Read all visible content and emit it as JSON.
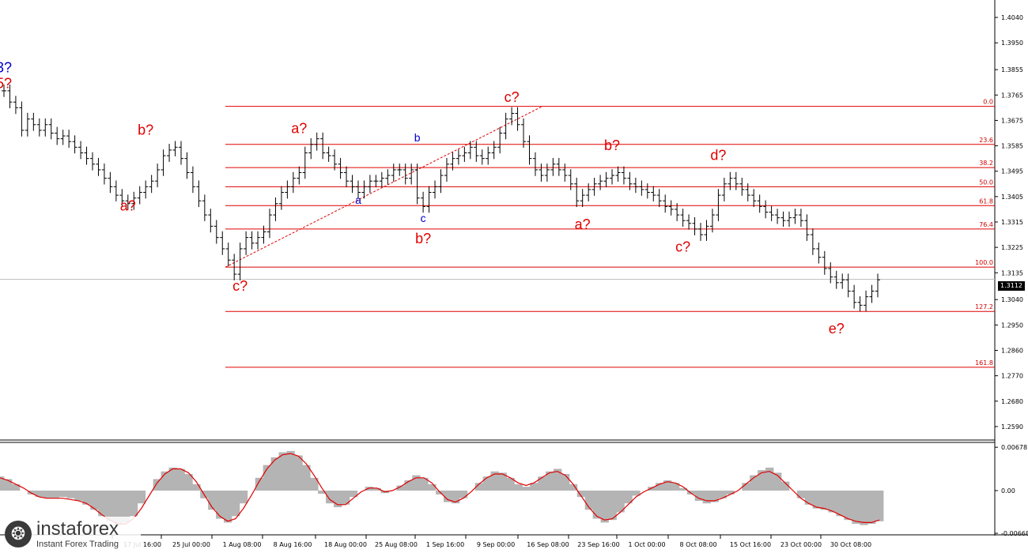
{
  "chart_data": [
    {
      "type": "line",
      "ylim": [
        1.2545,
        1.4085
      ],
      "y_ticks": [
        "1.4040",
        "1.3950",
        "1.3855",
        "1.3765",
        "1.3675",
        "1.3585",
        "1.3495",
        "1.3405",
        "1.3315",
        "1.3225",
        "1.3135",
        "1.3040",
        "1.2950",
        "1.2860",
        "1.2770",
        "1.2680",
        "1.2590"
      ],
      "x_ticks": [
        "17 Jul 16:00",
        "25 Jul 00:00",
        "1 Aug 08:00",
        "8 Aug 16:00",
        "18 Aug 00:00",
        "25 Aug 08:00",
        "1 Sep 16:00",
        "9 Sep 00:00",
        "16 Sep 08:00",
        "23 Sep 16:00",
        "1 Oct 00:00",
        "8 Oct 08:00",
        "15 Oct 16:00",
        "23 Oct 00:00",
        "30 Oct 08:00"
      ],
      "current_price": "1.3112",
      "series": [
        {
          "values": [
            1.378,
            1.374,
            1.372,
            1.364,
            1.368,
            1.366,
            1.364,
            1.366,
            1.363,
            1.361,
            1.362,
            1.36,
            1.358,
            1.356,
            1.354,
            1.352,
            1.35,
            1.347,
            1.344,
            1.341,
            1.339,
            1.338,
            1.34,
            1.342,
            1.344,
            1.346,
            1.35,
            1.355,
            1.357,
            1.358,
            1.354,
            1.349,
            1.344,
            1.339,
            1.334,
            1.33,
            1.326,
            1.322,
            1.318,
            1.313,
            1.322,
            1.326,
            1.324,
            1.326,
            1.328,
            1.334,
            1.338,
            1.342,
            1.344,
            1.347,
            1.349,
            1.356,
            1.359,
            1.361,
            1.356,
            1.355,
            1.352,
            1.349,
            1.346,
            1.344,
            1.342,
            1.344,
            1.346,
            1.346,
            1.347,
            1.348,
            1.35,
            1.35,
            1.347,
            1.35,
            1.34,
            1.337,
            1.342,
            1.344,
            1.348,
            1.352,
            1.354,
            1.355,
            1.356,
            1.358,
            1.355,
            1.354,
            1.356,
            1.358,
            1.363,
            1.368,
            1.37,
            1.366,
            1.36,
            1.354,
            1.35,
            1.348,
            1.35,
            1.352,
            1.35,
            1.348,
            1.345,
            1.339,
            1.341,
            1.343,
            1.345,
            1.346,
            1.347,
            1.348,
            1.349,
            1.347,
            1.345,
            1.344,
            1.343,
            1.342,
            1.341,
            1.339,
            1.337,
            1.336,
            1.334,
            1.332,
            1.331,
            1.329,
            1.327,
            1.33,
            1.334,
            1.341,
            1.345,
            1.347,
            1.345,
            1.343,
            1.341,
            1.339,
            1.337,
            1.335,
            1.334,
            1.333,
            1.332,
            1.333,
            1.334,
            1.332,
            1.327,
            1.322,
            1.319,
            1.315,
            1.312,
            1.31,
            1.311,
            1.307,
            1.303,
            1.302,
            1.305,
            1.307,
            1.311
          ]
        }
      ],
      "fibo_levels": [
        {
          "label": "0.0",
          "value": 1.3725
        },
        {
          "label": "23.6",
          "value": 1.359
        },
        {
          "label": "38.2",
          "value": 1.3508
        },
        {
          "label": "50.0",
          "value": 1.344
        },
        {
          "label": "61.8",
          "value": 1.3373
        },
        {
          "label": "76.4",
          "value": 1.329
        },
        {
          "label": "100.0",
          "value": 1.3155
        },
        {
          "label": "127.2",
          "value": 1.2998
        },
        {
          "label": "161.8",
          "value": 1.28
        }
      ],
      "wave_labels": [
        {
          "text": "3?",
          "color": "blue",
          "x_index": 0,
          "y": 1.3845
        },
        {
          "text": "5?",
          "color": "red",
          "x_index": 0,
          "y": 1.379
        },
        {
          "text": "b?",
          "color": "red",
          "x_index": 24,
          "y": 1.3625
        },
        {
          "text": "a?",
          "color": "red",
          "x_index": 21,
          "y": 1.3355
        },
        {
          "text": "c?",
          "color": "red",
          "x_index": 40,
          "y": 1.3072
        },
        {
          "text": "a?",
          "color": "red",
          "x_index": 50,
          "y": 1.363
        },
        {
          "text": "a",
          "color": "blue",
          "x_index": 60,
          "y": 1.338
        },
        {
          "text": "b",
          "color": "blue",
          "x_index": 70,
          "y": 1.36
        },
        {
          "text": "c",
          "color": "blue",
          "x_index": 71,
          "y": 1.3315
        },
        {
          "text": "b?",
          "color": "red",
          "x_index": 71,
          "y": 1.324
        },
        {
          "text": "c?",
          "color": "red",
          "x_index": 86,
          "y": 1.374
        },
        {
          "text": "b?",
          "color": "red",
          "x_index": 103,
          "y": 1.357
        },
        {
          "text": "a?",
          "color": "red",
          "x_index": 98,
          "y": 1.329
        },
        {
          "text": "d?",
          "color": "red",
          "x_index": 121,
          "y": 1.3535
        },
        {
          "text": "c?",
          "color": "red",
          "x_index": 115,
          "y": 1.321
        },
        {
          "text": "e?",
          "color": "red",
          "x_index": 141,
          "y": 1.292
        }
      ]
    },
    {
      "type": "bar",
      "ylim": [
        -0.0068,
        0.0068
      ],
      "y_ticks": [
        "0.00678",
        "0.00",
        "-0.00668"
      ],
      "series": [
        {
          "name": "histogram",
          "values": [
            0.0022,
            0.0018,
            0.001,
            0.0,
            -0.0006,
            -0.001,
            -0.0012,
            -0.0012,
            -0.001,
            -0.0012,
            -0.0016,
            -0.0022,
            -0.003,
            -0.004,
            -0.0048,
            -0.0054,
            -0.005,
            -0.004,
            -0.002,
            0.0,
            0.0018,
            0.003,
            0.0036,
            0.0034,
            0.0026,
            0.001,
            -0.0012,
            -0.003,
            -0.0044,
            -0.005,
            -0.004,
            -0.002,
            0.0,
            0.002,
            0.004,
            0.0052,
            0.006,
            0.0062,
            0.0055,
            0.004,
            0.002,
            -0.0005,
            -0.002,
            -0.0026,
            -0.0022,
            -0.001,
            0.0,
            0.0006,
            0.0004,
            -0.0004,
            0.0,
            0.0008,
            0.0016,
            0.0024,
            0.002,
            0.001,
            -0.0006,
            -0.0018,
            -0.002,
            -0.0012,
            0.0,
            0.0012,
            0.0022,
            0.003,
            0.0028,
            0.002,
            0.001,
            0.0006,
            0.0012,
            0.0022,
            0.003,
            0.0034,
            0.0026,
            0.001,
            -0.001,
            -0.003,
            -0.0044,
            -0.005,
            -0.0046,
            -0.0034,
            -0.002,
            -0.0008,
            0.0,
            0.0006,
            0.0012,
            0.0016,
            0.0012,
            0.0004,
            -0.0006,
            -0.0016,
            -0.002,
            -0.0018,
            -0.0012,
            -0.0006,
            0.0,
            0.0012,
            0.0024,
            0.0032,
            0.0036,
            0.0028,
            0.0014,
            0.0,
            -0.0012,
            -0.0022,
            -0.0028,
            -0.003,
            -0.0034,
            -0.004,
            -0.0046,
            -0.0052,
            -0.0054,
            -0.0052,
            -0.0048
          ]
        },
        {
          "name": "signal",
          "values": [
            0.002,
            0.0016,
            0.001,
            0.0004,
            -0.0004,
            -0.001,
            -0.0012,
            -0.0012,
            -0.0012,
            -0.0014,
            -0.0016,
            -0.002,
            -0.0028,
            -0.0038,
            -0.0046,
            -0.0052,
            -0.0052,
            -0.0044,
            -0.0028,
            -0.0008,
            0.0012,
            0.0026,
            0.0034,
            0.0034,
            0.0028,
            0.0014,
            -0.0006,
            -0.0026,
            -0.004,
            -0.0048,
            -0.0044,
            -0.0028,
            -0.0008,
            0.0014,
            0.0034,
            0.0048,
            0.0056,
            0.0058,
            0.0054,
            0.0042,
            0.0024,
            0.0004,
            -0.0014,
            -0.0022,
            -0.0022,
            -0.0012,
            -0.0002,
            0.0004,
            0.0004,
            -0.0002,
            0.0,
            0.0006,
            0.0014,
            0.002,
            0.002,
            0.0012,
            -0.0002,
            -0.0014,
            -0.0018,
            -0.0012,
            -0.0002,
            0.001,
            0.002,
            0.0026,
            0.0026,
            0.002,
            0.0012,
            0.0008,
            0.0012,
            0.002,
            0.0028,
            0.003,
            0.0024,
            0.001,
            -0.0008,
            -0.0026,
            -0.004,
            -0.0046,
            -0.0044,
            -0.0034,
            -0.0022,
            -0.001,
            -0.0002,
            0.0004,
            0.001,
            0.0014,
            0.0012,
            0.0006,
            -0.0004,
            -0.0012,
            -0.0016,
            -0.0016,
            -0.0012,
            -0.0006,
            0.0,
            0.001,
            0.002,
            0.0028,
            0.003,
            0.0024,
            0.0012,
            0.0,
            -0.0012,
            -0.002,
            -0.0026,
            -0.0028,
            -0.0032,
            -0.0038,
            -0.0044,
            -0.0048,
            -0.005,
            -0.005,
            -0.0046
          ]
        }
      ]
    }
  ],
  "branding": {
    "icon_name": "instaforex-logo-icon",
    "brand": "instaforex",
    "sub": "Instant Forex Trading"
  }
}
